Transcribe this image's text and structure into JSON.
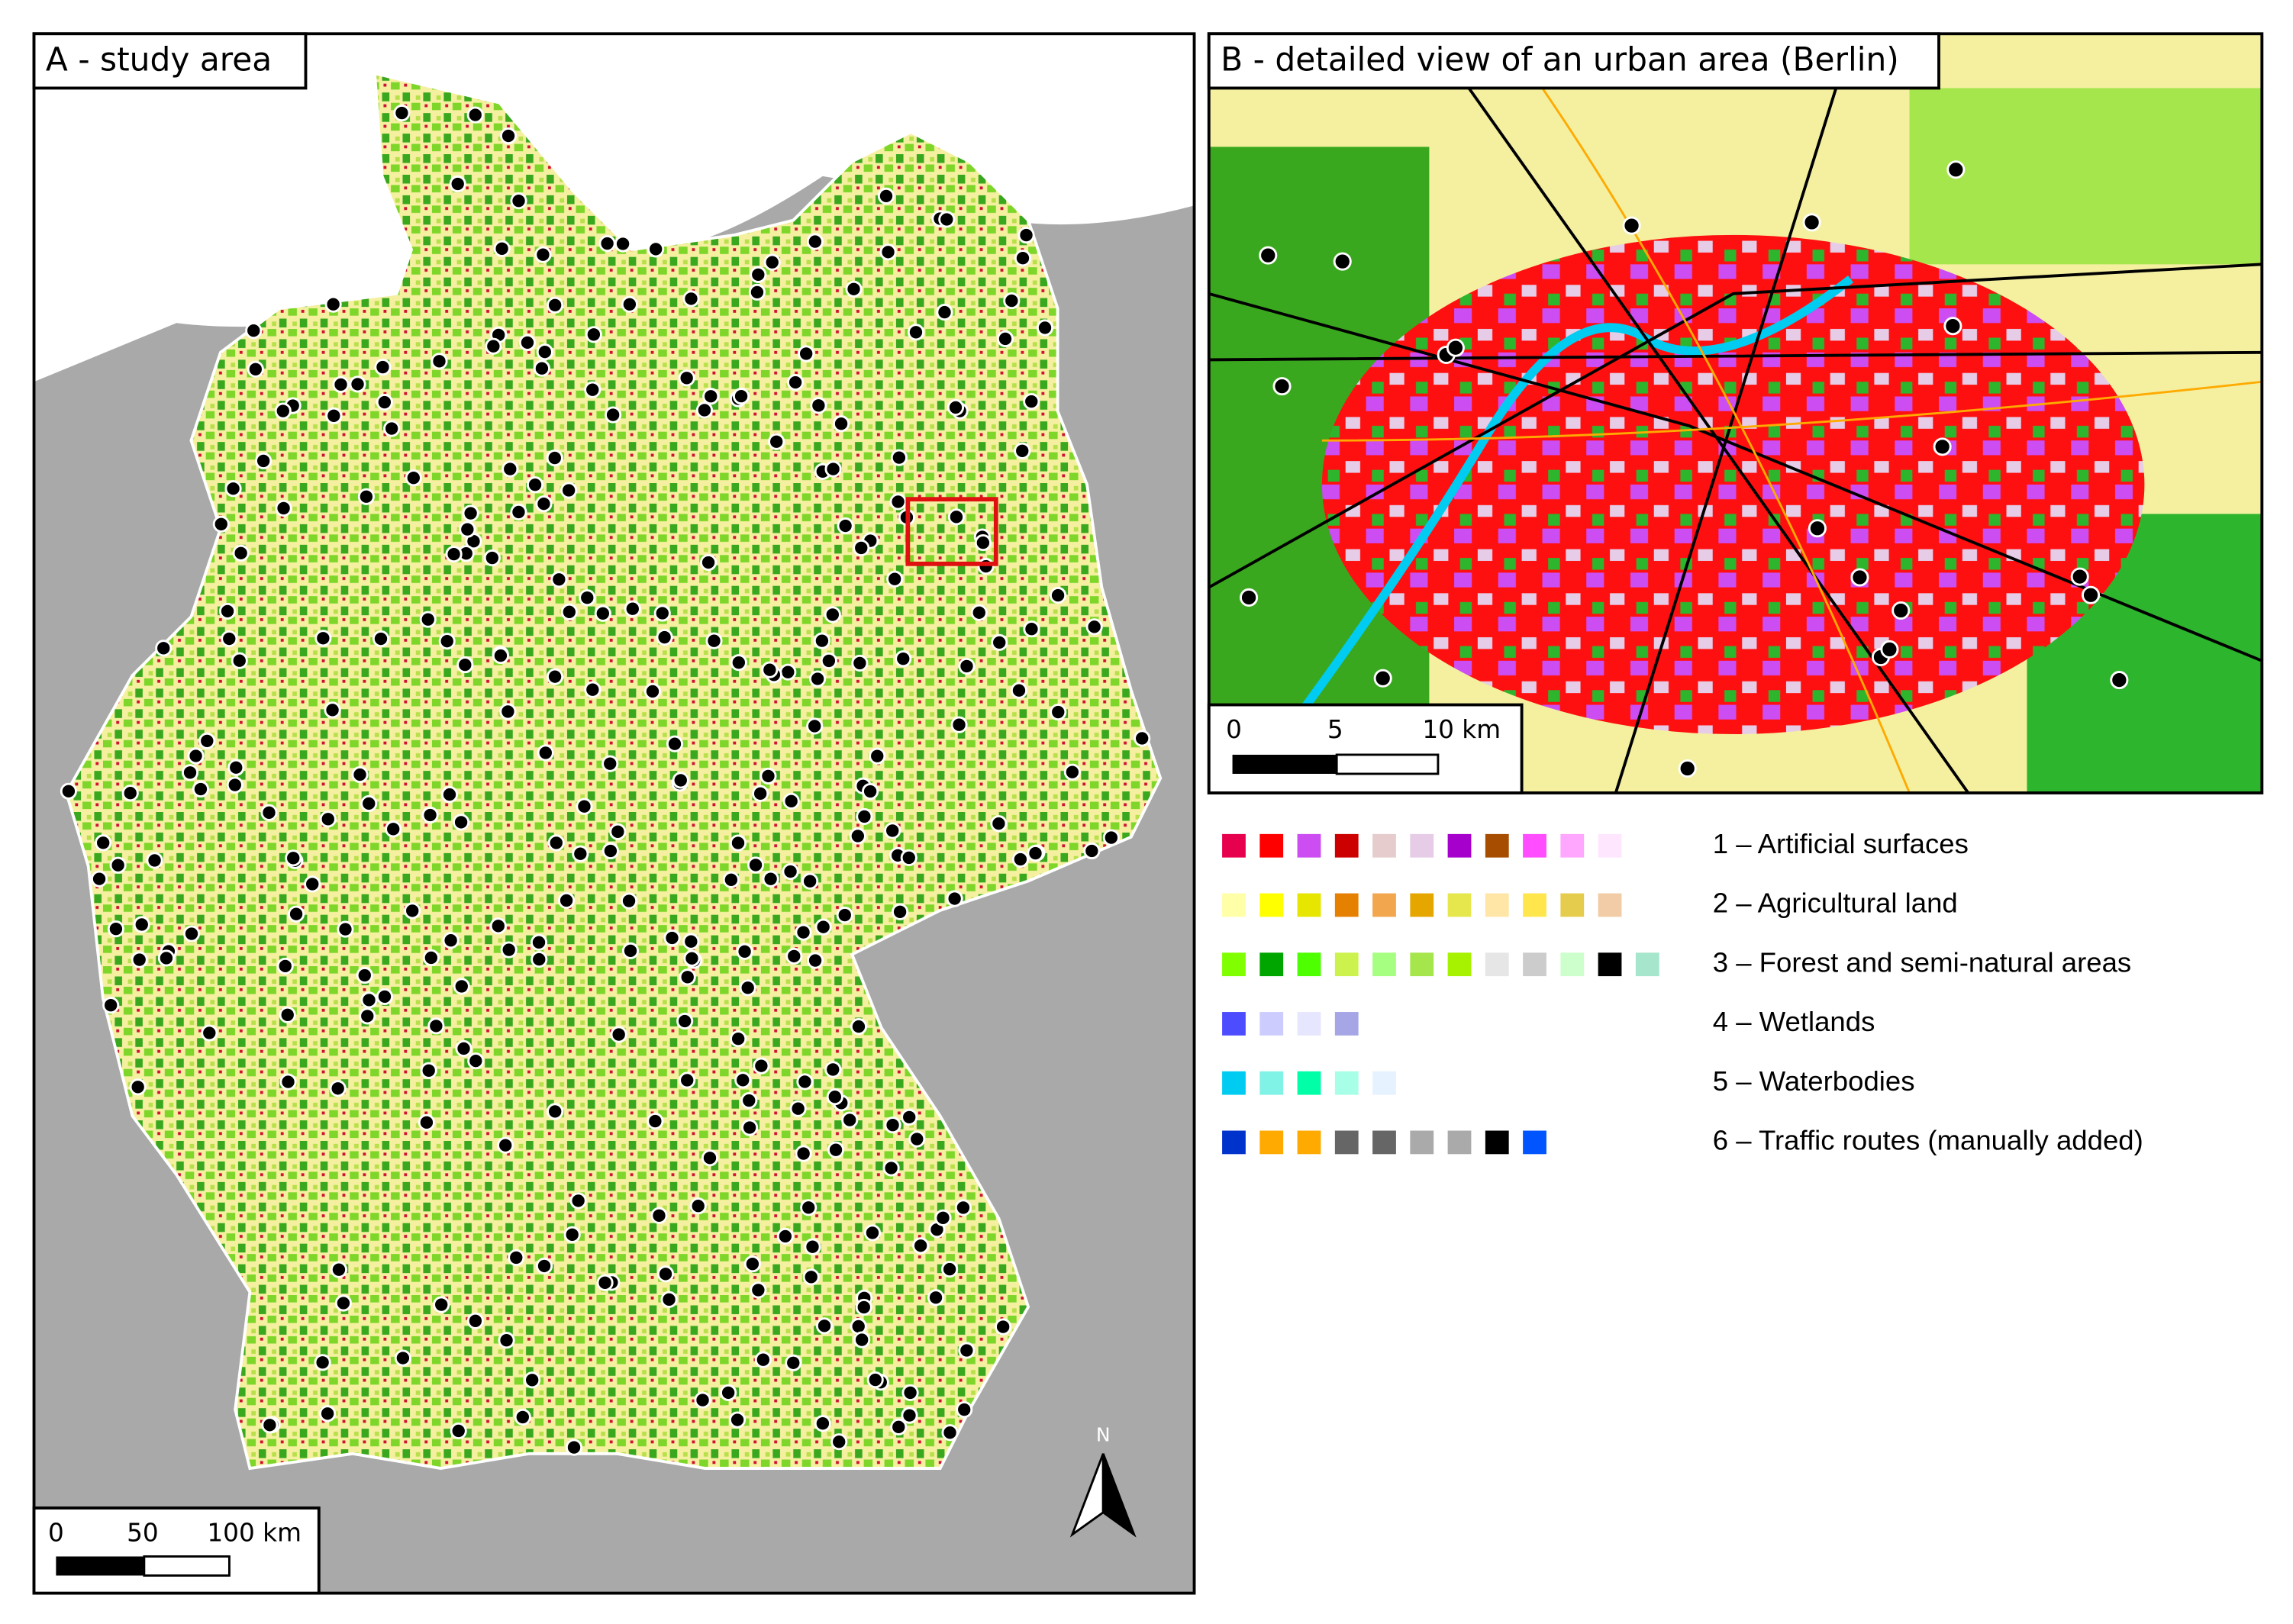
{
  "panel_a": {
    "title": "A - study area",
    "scale_bar": {
      "labels": [
        "0",
        "50",
        "100 km"
      ]
    },
    "north_arrow": "N"
  },
  "panel_b": {
    "title": "B - detailed view of an urban area (Berlin)",
    "scale_bar": {
      "labels": [
        "0",
        "5",
        "10 km"
      ]
    }
  },
  "legend": {
    "entries": [
      {
        "label": "1 – Artificial surfaces",
        "colors": [
          "#e6004d",
          "#ff0000",
          "#cc4df2",
          "#cc0000",
          "#e6cccc",
          "#e6cce6",
          "#a600cc",
          "#a64d00",
          "#ff4dff",
          "#ffa6ff",
          "#ffe6ff"
        ]
      },
      {
        "label": "2 – Agricultural land",
        "colors": [
          "#ffffa8",
          "#ffff00",
          "#e6e600",
          "#e68000",
          "#f2a64d",
          "#e6a600",
          "#e6e64d",
          "#ffe6a6",
          "#ffe64d",
          "#e6cc4d",
          "#f2cca6"
        ]
      },
      {
        "label": "3 – Forest and semi-natural areas",
        "colors": [
          "#80ff00",
          "#00a600",
          "#4dff00",
          "#ccf24d",
          "#a6ff80",
          "#a6e64d",
          "#a6f200",
          "#e6e6e6",
          "#cccccc",
          "#ccffcc",
          "#000000",
          "#a6e6cc"
        ]
      },
      {
        "label": "4 – Wetlands",
        "colors": [
          "#4d4dff",
          "#ccccff",
          "#e6e6ff",
          "#a6a6e6"
        ]
      },
      {
        "label": "5 – Waterbodies",
        "colors": [
          "#00ccf2",
          "#80f2e6",
          "#00ffa6",
          "#a6ffe6",
          "#e6f2ff"
        ]
      },
      {
        "label": "6 – Traffic routes (manually added)",
        "colors": [
          "#0033cc",
          "#ffaa00",
          "#ffaa00",
          "#666666",
          "#666666",
          "#aaaaaa",
          "#aaaaaa",
          "#000000",
          "#0055ff"
        ]
      }
    ]
  }
}
